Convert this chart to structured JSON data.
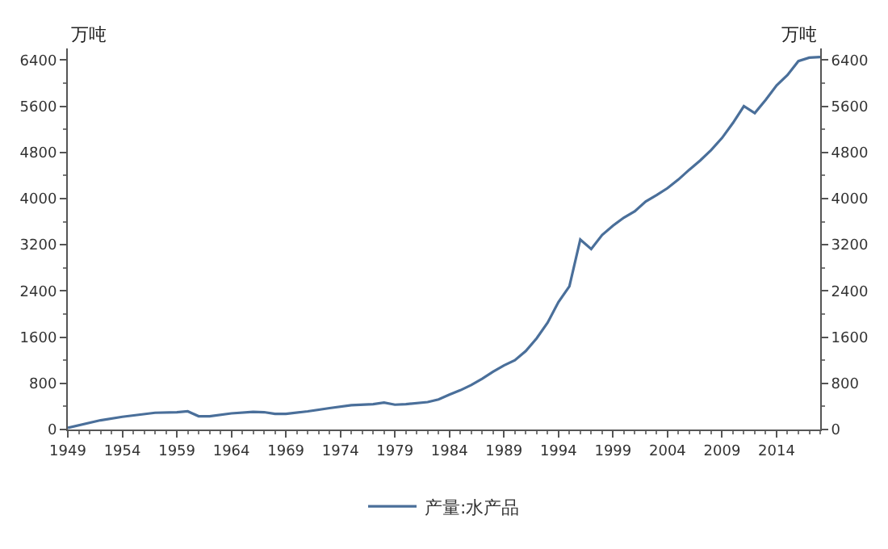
{
  "chart_data": {
    "type": "line",
    "ylabel": "万吨",
    "y2label": "万吨",
    "x": [
      1949,
      1952,
      1954,
      1957,
      1959,
      1960,
      1961,
      1962,
      1964,
      1966,
      1967,
      1968,
      1969,
      1971,
      1973,
      1975,
      1977,
      1978,
      1979,
      1980,
      1982,
      1983,
      1984,
      1985,
      1986,
      1987,
      1988,
      1989,
      1990,
      1991,
      1992,
      1993,
      1994,
      1995,
      1996,
      1997,
      1998,
      1999,
      2000,
      2001,
      2002,
      2003,
      2004,
      2005,
      2006,
      2007,
      2008,
      2009,
      2010,
      2011,
      2012,
      2013,
      2014,
      2015,
      2016,
      2017,
      2018
    ],
    "series": [
      {
        "name": "产量:水产品",
        "color": "#4a6f9a",
        "values": [
          30,
          160,
          220,
          290,
          300,
          315,
          230,
          230,
          280,
          305,
          300,
          270,
          270,
          315,
          370,
          420,
          440,
          465,
          430,
          440,
          475,
          520,
          605,
          680,
          770,
          880,
          1000,
          1110,
          1200,
          1360,
          1580,
          1850,
          2210,
          2480,
          3290,
          3125,
          3370,
          3530,
          3670,
          3780,
          3950,
          4060,
          4180,
          4330,
          4500,
          4660,
          4840,
          5050,
          5310,
          5600,
          5480,
          5710,
          5960,
          6140,
          6380,
          6440,
          6450
        ]
      }
    ],
    "xlim": [
      1949,
      2018
    ],
    "xticks": [
      1949,
      1954,
      1959,
      1964,
      1969,
      1974,
      1979,
      1984,
      1989,
      1994,
      1999,
      2004,
      2009,
      2014
    ],
    "ylim": [
      0,
      6600
    ],
    "yticks": [
      0,
      800,
      1600,
      2400,
      3200,
      4000,
      4800,
      5600,
      6400
    ],
    "y2lim": [
      0,
      6600
    ],
    "y2ticks": [
      0,
      800,
      1600,
      2400,
      3200,
      4000,
      4800,
      5600,
      6400
    ],
    "grid": false,
    "legend": "bottom",
    "marker": "none",
    "line_style": "solid"
  }
}
